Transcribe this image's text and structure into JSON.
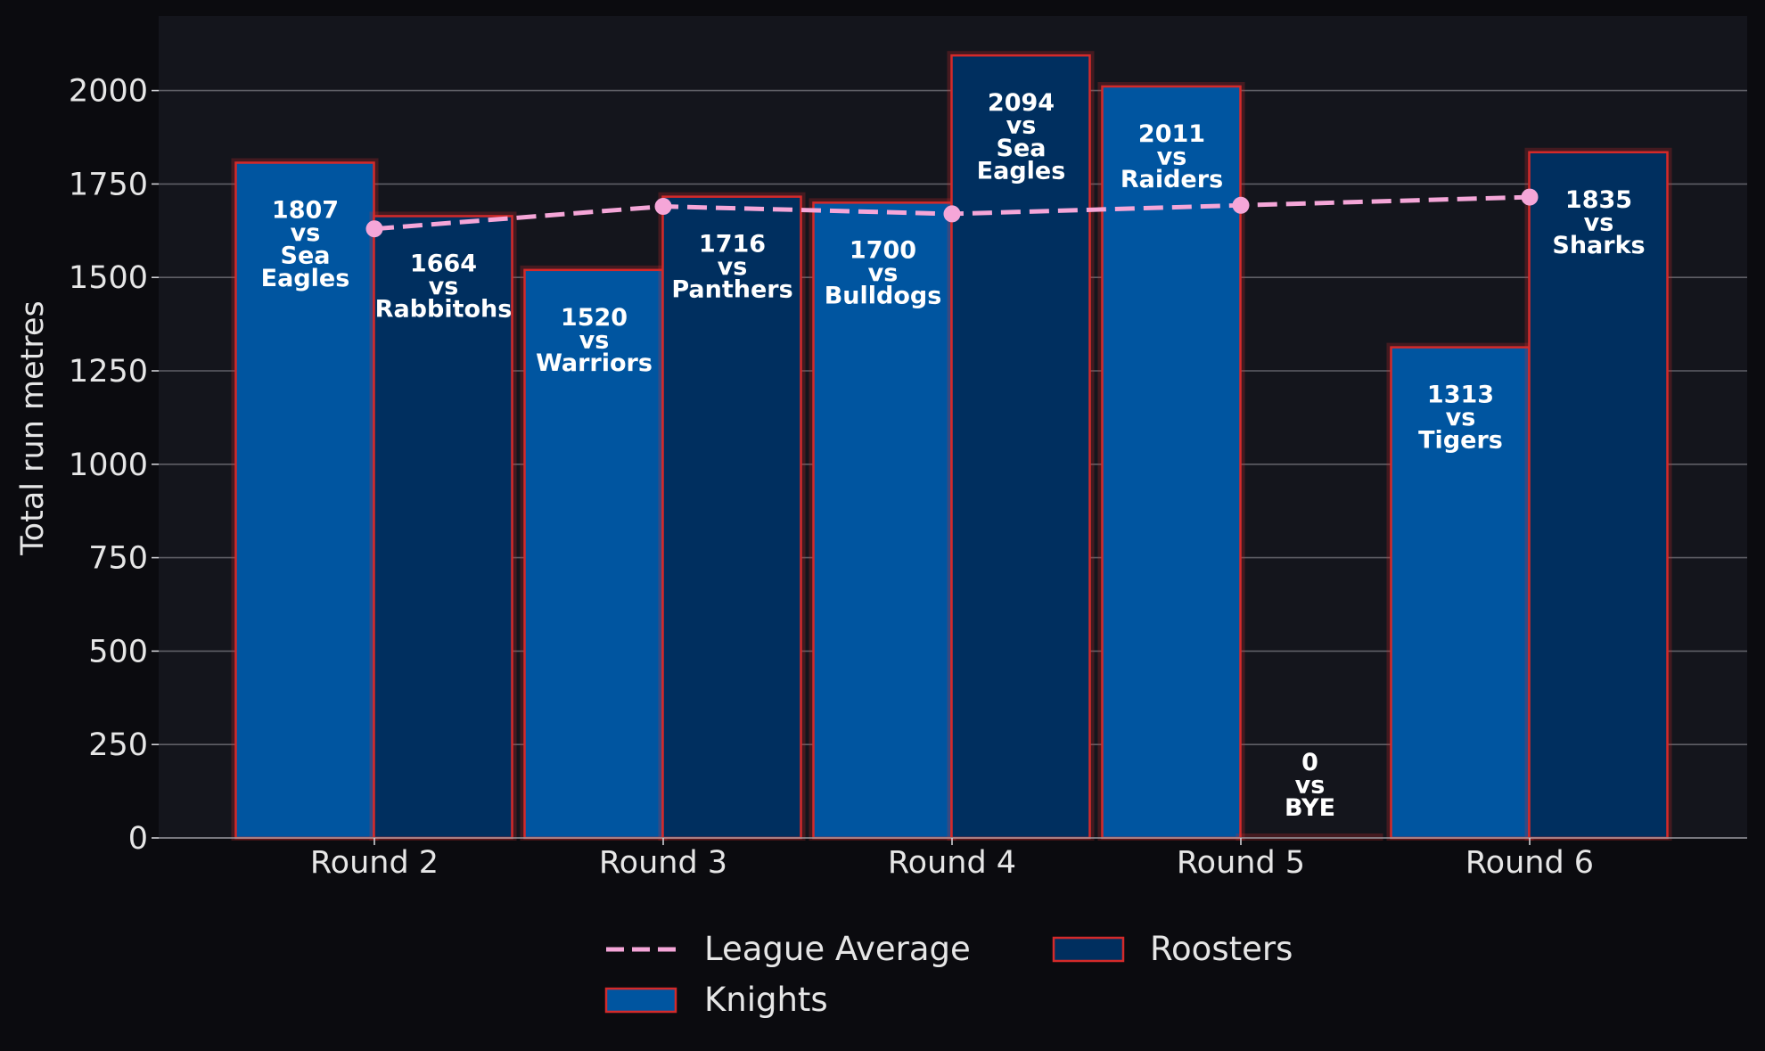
{
  "colors": {
    "page_bg": "#0b0b0f",
    "plot_bg": "#14151c",
    "grid": "#5f5f66",
    "knights": "#0055a0",
    "roosters": "#002f5f",
    "bar_edge": "#d42a2a",
    "league_average": "#f5a6d8",
    "text": "#e6e6e6",
    "label_text": "#ffffff"
  },
  "chart_data": {
    "type": "bar",
    "title": "",
    "xlabel": "",
    "ylabel": "Total run metres",
    "categories": [
      "Round 2",
      "Round 3",
      "Round 4",
      "Round 5",
      "Round 6"
    ],
    "ylim": [
      0,
      2200
    ],
    "yticks": [
      0,
      250,
      500,
      750,
      1000,
      1250,
      1500,
      1750,
      2000
    ],
    "grid": "y",
    "legend_position": "bottom-center",
    "series": [
      {
        "name": "Knights",
        "kind": "bar",
        "values": [
          1807,
          1520,
          1700,
          2011,
          1313
        ],
        "labels": [
          [
            "1807",
            "vs",
            "Sea",
            "Eagles"
          ],
          [
            "1520",
            "vs",
            "Warriors"
          ],
          [
            "1700",
            "vs",
            "Bulldogs"
          ],
          [
            "2011",
            "vs",
            "Raiders"
          ],
          [
            "1313",
            "vs",
            "Tigers"
          ]
        ]
      },
      {
        "name": "Roosters",
        "kind": "bar",
        "values": [
          1664,
          1716,
          2094,
          0,
          1835
        ],
        "labels": [
          [
            "1664",
            "vs",
            "Rabbitohs"
          ],
          [
            "1716",
            "vs",
            "Panthers"
          ],
          [
            "2094",
            "vs",
            "Sea",
            "Eagles"
          ],
          [
            "0",
            "vs",
            "BYE"
          ],
          [
            "1835",
            "vs",
            "Sharks"
          ]
        ]
      },
      {
        "name": "League Average",
        "kind": "line",
        "style": "dashed",
        "values": [
          1630,
          1690,
          1670,
          1693,
          1715
        ]
      }
    ],
    "legend": {
      "items": [
        "League Average",
        "Roosters",
        "Knights"
      ]
    }
  }
}
